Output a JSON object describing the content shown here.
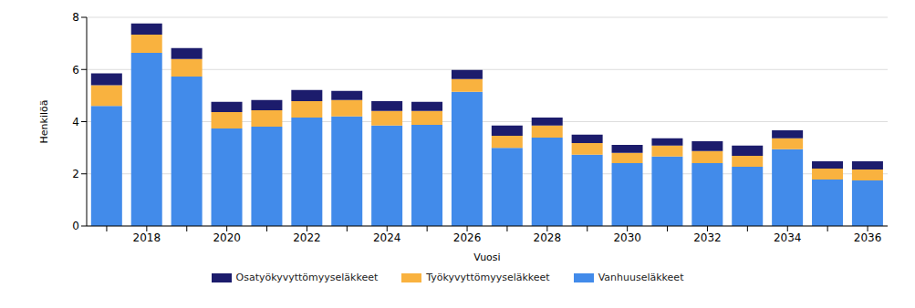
{
  "chart_data": {
    "type": "bar",
    "stacked": true,
    "x_label": "Vuosi",
    "y_label": "Henkilöä",
    "categories": [
      null,
      "2018",
      null,
      "2020",
      null,
      "2022",
      null,
      "2024",
      null,
      "2026",
      null,
      "2028",
      null,
      "2030",
      null,
      "2032",
      null,
      "2034",
      null,
      "2036"
    ],
    "series": [
      {
        "name": "Osatyökyvyttömyyseläkkeet",
        "color": "#1c1c6c",
        "values": [
          0.45,
          0.42,
          0.42,
          0.39,
          0.39,
          0.42,
          0.35,
          0.38,
          0.35,
          0.35,
          0.39,
          0.31,
          0.32,
          0.31,
          0.28,
          0.38,
          0.39,
          0.31,
          0.28,
          0.31
        ]
      },
      {
        "name": "Työkyvyttömyyseläkkeet",
        "color": "#f9b23f",
        "values": [
          0.8,
          0.7,
          0.67,
          0.63,
          0.63,
          0.63,
          0.63,
          0.56,
          0.53,
          0.49,
          0.46,
          0.46,
          0.45,
          0.39,
          0.42,
          0.46,
          0.42,
          0.42,
          0.42,
          0.42
        ]
      },
      {
        "name": "Vanhuuseläkkeet",
        "color": "#428bea",
        "values": [
          4.6,
          6.64,
          5.73,
          3.74,
          3.81,
          4.16,
          4.2,
          3.85,
          3.88,
          5.14,
          3.0,
          3.39,
          2.73,
          2.41,
          2.66,
          2.41,
          2.27,
          2.94,
          1.78,
          1.75
        ]
      }
    ],
    "ylim": [
      0,
      8
    ],
    "yticks": [
      0,
      2,
      4,
      6,
      8
    ],
    "grid": true,
    "legend": "bottom"
  }
}
